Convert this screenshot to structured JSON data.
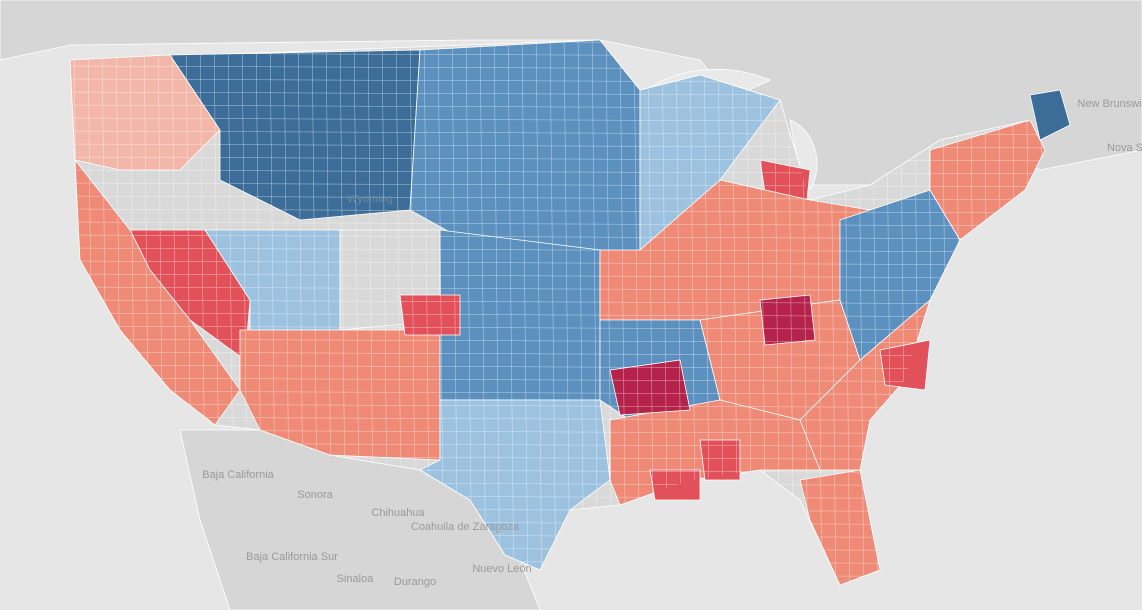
{
  "colors": {
    "background": "#e6e6e6",
    "land": "#d6d6d6",
    "water": "#e9e9e9",
    "border": "#ffffff",
    "dark_blue": "#3c6d98",
    "mid_blue": "#5b90bf",
    "light_blue": "#9cc2e0",
    "pale_blue": "#c8dbe9",
    "grey": "#d9d9d9",
    "pale_red": "#f3b7aa",
    "light_red": "#ef8a77",
    "mid_red": "#e2505a",
    "dark_red": "#b5224a"
  },
  "labels": {
    "new_brunswick": "New Brunswick",
    "nova": "Nova S",
    "wyoming": "Wyoming",
    "baja_california": "Baja California",
    "sonora": "Sonora",
    "chihuahua": "Chihuahua",
    "coahuila": "Coahuila de Zaragoza",
    "baja_california_sur": "Baja California Sur",
    "sinaloa": "Sinaloa",
    "durango": "Durango",
    "nuevo_leon": "Nuevo León"
  }
}
